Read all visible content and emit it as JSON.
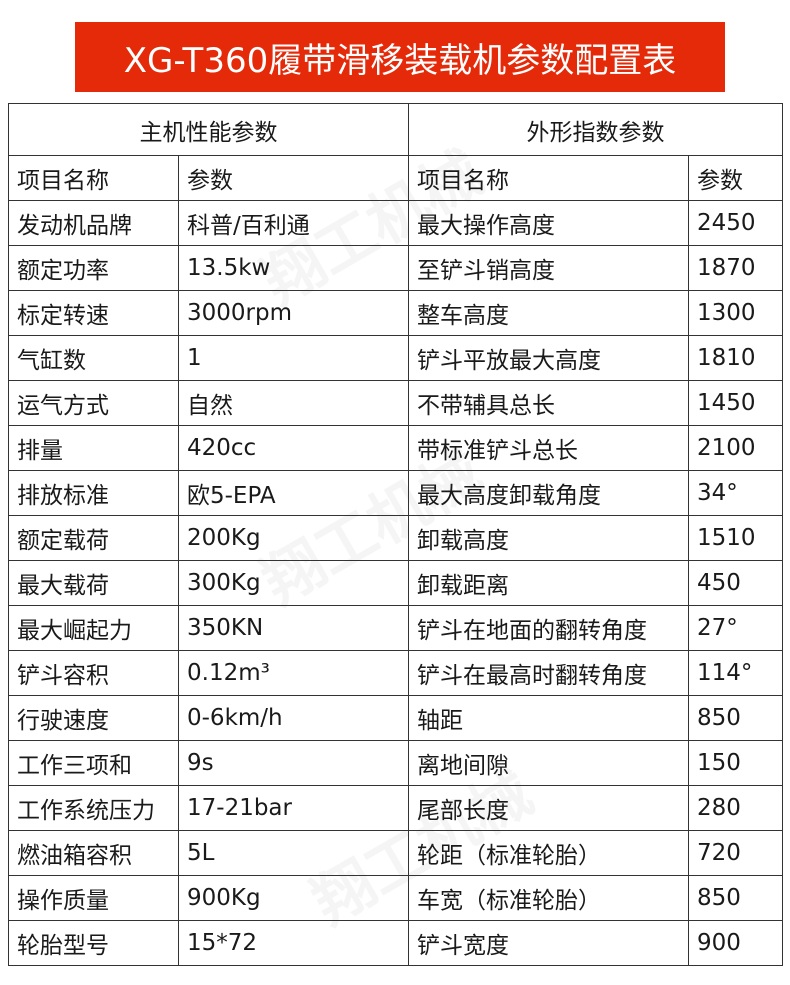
{
  "title": "XG-T360履带滑移装载机参数配置表",
  "groups": [
    "主机性能参数",
    "外形指数参数"
  ],
  "column_headers": [
    "项目名称",
    "参数",
    "项目名称",
    "参数"
  ],
  "rows": [
    [
      "发动机品牌",
      "科普/百利通",
      "最大操作高度",
      "2450"
    ],
    [
      "额定功率",
      "13.5kw",
      "至铲斗销高度",
      "1870"
    ],
    [
      "标定转速",
      "3000rpm",
      "整车高度",
      "1300"
    ],
    [
      "气缸数",
      "1",
      "铲斗平放最大高度",
      "1810"
    ],
    [
      "运气方式",
      "自然",
      "不带辅具总长",
      "1450"
    ],
    [
      "排量",
      "420cc",
      "带标准铲斗总长",
      "2100"
    ],
    [
      "排放标准",
      "欧5-EPA",
      "最大高度卸载角度",
      "34°"
    ],
    [
      "额定载荷",
      "200Kg",
      "卸载高度",
      "1510"
    ],
    [
      "最大载荷",
      "300Kg",
      "卸载距离",
      "450"
    ],
    [
      "最大崛起力",
      "350KN",
      "铲斗在地面的翻转角度",
      "27°"
    ],
    [
      "铲斗容积",
      "0.12m³",
      "铲斗在最高时翻转角度",
      "114°"
    ],
    [
      "行驶速度",
      "0-6km/h",
      "轴距",
      "850"
    ],
    [
      "工作三项和",
      "9s",
      "离地间隙",
      "150"
    ],
    [
      "工作系统压力",
      "17-21bar",
      "尾部长度",
      "280"
    ],
    [
      "燃油箱容积",
      "5L",
      "轮距（标准轮胎）",
      "720"
    ],
    [
      "操作质量",
      "900Kg",
      "车宽（标准轮胎）",
      "850"
    ],
    [
      "轮胎型号",
      "15*72",
      "铲斗宽度",
      "900"
    ]
  ],
  "watermark": "翔工机械 XGONG",
  "colors": {
    "banner": "#e52a0a",
    "border": "#333333"
  }
}
